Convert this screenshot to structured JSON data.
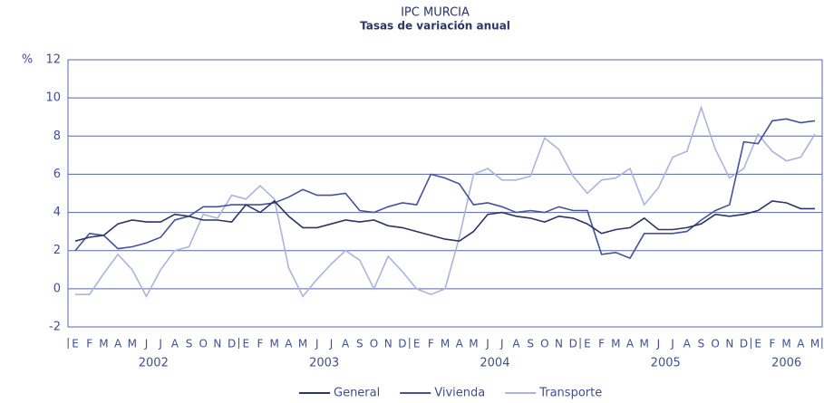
{
  "chart_data": {
    "type": "line",
    "title": "IPC MURCIA",
    "subtitle": "Tasas de variación anual",
    "y_label": "%",
    "categories": [
      "E",
      "F",
      "M",
      "A",
      "M",
      "J",
      "J",
      "A",
      "S",
      "O",
      "N",
      "D",
      "E",
      "F",
      "M",
      "A",
      "M",
      "J",
      "J",
      "A",
      "S",
      "O",
      "N",
      "D",
      "E",
      "F",
      "M",
      "A",
      "M",
      "J",
      "J",
      "A",
      "S",
      "O",
      "N",
      "D",
      "E",
      "F",
      "M",
      "A",
      "M",
      "J",
      "J",
      "A",
      "S",
      "O",
      "N",
      "D",
      "E",
      "F",
      "M",
      "A",
      "M"
    ],
    "years": [
      "2002",
      "2003",
      "2004",
      "2005",
      "2006"
    ],
    "series": [
      {
        "name": "General",
        "color": "#2b3566",
        "values": [
          2.5,
          2.7,
          2.8,
          3.4,
          3.6,
          3.5,
          3.5,
          3.9,
          3.8,
          3.6,
          3.6,
          3.5,
          4.4,
          4.0,
          4.6,
          3.8,
          3.2,
          3.2,
          3.4,
          3.6,
          3.5,
          3.6,
          3.3,
          3.2,
          3.0,
          2.8,
          2.6,
          2.5,
          3.0,
          3.9,
          4.0,
          3.8,
          3.7,
          3.5,
          3.8,
          3.7,
          3.4,
          2.9,
          3.1,
          3.2,
          3.7,
          3.1,
          3.1,
          3.2,
          3.4,
          3.9,
          3.8,
          3.9,
          4.1,
          4.6,
          4.5,
          4.2,
          4.2
        ]
      },
      {
        "name": "Vivienda",
        "color": "#45529a",
        "values": [
          2.0,
          2.9,
          2.8,
          2.1,
          2.2,
          2.4,
          2.7,
          3.6,
          3.8,
          4.3,
          4.3,
          4.4,
          4.4,
          4.4,
          4.5,
          4.8,
          5.2,
          4.9,
          4.9,
          5.0,
          4.1,
          4.0,
          4.3,
          4.5,
          4.4,
          6.0,
          5.8,
          5.5,
          4.4,
          4.5,
          4.3,
          4.0,
          4.1,
          4.0,
          4.3,
          4.1,
          4.1,
          1.8,
          1.9,
          1.6,
          2.9,
          2.9,
          2.9,
          3.0,
          3.6,
          4.1,
          4.4,
          7.7,
          7.6,
          8.8,
          8.9,
          8.7,
          8.8
        ]
      },
      {
        "name": "Transporte",
        "color": "#aab4dd",
        "values": [
          -0.3,
          -0.3,
          0.8,
          1.8,
          1.0,
          -0.4,
          1.0,
          2.0,
          2.2,
          3.9,
          3.7,
          4.9,
          4.7,
          5.4,
          4.7,
          1.1,
          -0.4,
          0.5,
          1.3,
          2.0,
          1.5,
          0.0,
          1.7,
          0.9,
          0.0,
          -0.3,
          0.0,
          2.7,
          6.0,
          6.3,
          5.7,
          5.7,
          5.9,
          7.9,
          7.3,
          5.9,
          5.0,
          5.7,
          5.8,
          6.3,
          4.4,
          5.3,
          6.9,
          7.2,
          9.5,
          7.3,
          5.8,
          6.3,
          8.1,
          7.2,
          6.7,
          6.9,
          8.1
        ]
      }
    ],
    "ylim": [
      -2,
      12
    ],
    "yticks": [
      -2,
      0,
      2,
      4,
      6,
      8,
      10,
      12
    ],
    "grid": true
  }
}
